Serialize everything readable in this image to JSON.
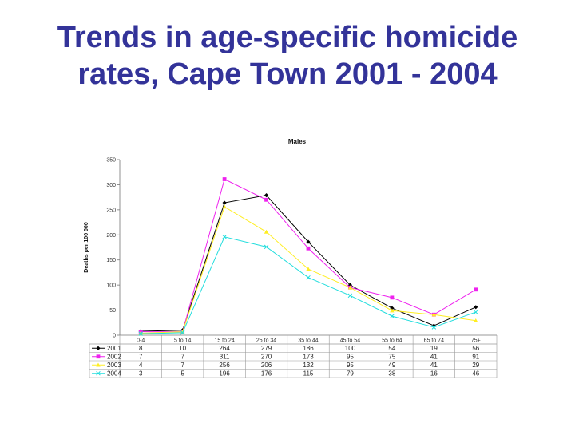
{
  "slide": {
    "title_line1": "Trends in age-specific homicide",
    "title_line2": "rates, Cape Town 2001 - 2004"
  },
  "chart_data": {
    "type": "line",
    "title": "Males",
    "ylabel": "Deaths per 100 000",
    "xlabel": "",
    "ylim": [
      0,
      350
    ],
    "yticks": [
      0,
      50,
      100,
      150,
      200,
      250,
      300,
      350
    ],
    "categories": [
      "0-4",
      "5 to 14",
      "15 to 24",
      "25 to 34",
      "35 to 44",
      "45 to 54",
      "55 to 64",
      "65 to 74",
      "75+"
    ],
    "grid": false,
    "legend": "data table below plot",
    "series": [
      {
        "name": "2001",
        "color": "#000000",
        "marker": "diamond",
        "values": [
          8,
          10,
          264,
          279,
          186,
          100,
          54,
          19,
          56
        ]
      },
      {
        "name": "2002",
        "color": "#ee22ee",
        "marker": "square",
        "values": [
          7,
          7,
          311,
          270,
          173,
          95,
          75,
          41,
          91
        ]
      },
      {
        "name": "2003",
        "color": "#ffee22",
        "marker": "triangle",
        "values": [
          4,
          7,
          256,
          206,
          132,
          95,
          49,
          41,
          29
        ]
      },
      {
        "name": "2004",
        "color": "#22dddd",
        "marker": "x",
        "values": [
          3,
          5,
          196,
          176,
          115,
          79,
          38,
          16,
          46
        ]
      }
    ]
  }
}
